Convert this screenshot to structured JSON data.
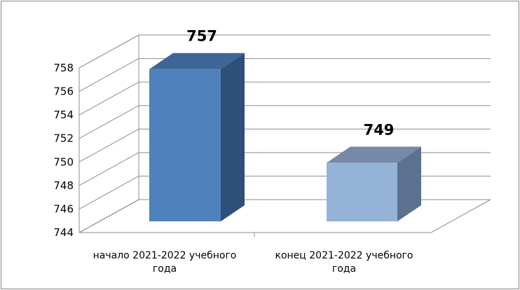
{
  "chart_data": {
    "type": "bar",
    "style": "3d-column",
    "categories": [
      [
        "начало 2021-2022 учебного",
        "года"
      ],
      [
        "конец 2021-2022 учебного",
        "года"
      ]
    ],
    "values": [
      757,
      749
    ],
    "data_labels": [
      "757",
      "749"
    ],
    "ylim": [
      744,
      758
    ],
    "yticks": [
      "744",
      "746",
      "748",
      "750",
      "752",
      "754",
      "756",
      "758"
    ],
    "grid": true,
    "legend": "none",
    "colors": {
      "bar1_front": "#4f81bd",
      "bar1_side": "#2e4f7a",
      "bar1_top": "#3d6696",
      "bar2_front": "#95b3d7",
      "bar2_side": "#5c718f",
      "bar2_top": "#7689a6",
      "grid": "#8c8c8c",
      "frame": "#868686"
    }
  }
}
